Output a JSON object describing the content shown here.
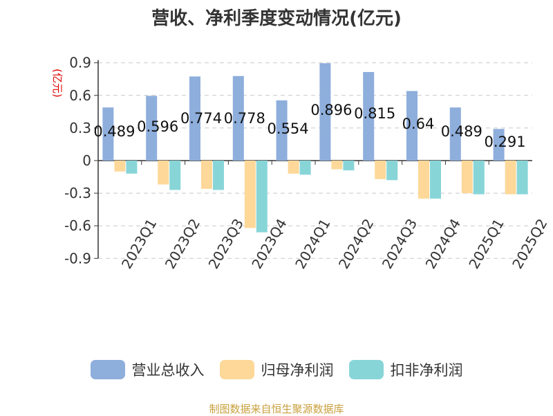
{
  "chart_data": {
    "type": "bar",
    "title": "营收、净利季度变动情况(亿元)",
    "ylabel": "(亿元)",
    "xlabel": "",
    "categories": [
      "2023Q1",
      "2023Q2",
      "2023Q3",
      "2023Q4",
      "2024Q1",
      "2024Q2",
      "2024Q3",
      "2024Q4",
      "2025Q1",
      "2025Q2"
    ],
    "yticks": [
      "0.9",
      "0.6",
      "0.3",
      "0",
      "-0.3",
      "-0.6",
      "-0.9"
    ],
    "ylim": [
      -0.9,
      0.9
    ],
    "grid": true,
    "legend_position": "bottom",
    "series": [
      {
        "name": "营业总收入",
        "color": "#8eaedc",
        "values": [
          0.489,
          0.596,
          0.774,
          0.778,
          0.554,
          0.896,
          0.815,
          0.64,
          0.489,
          0.291
        ],
        "labels": [
          "0.489",
          "0.596",
          "0.774",
          "0.778",
          "0.554",
          "0.896",
          "0.815",
          "0.64",
          "0.489",
          "0.291"
        ]
      },
      {
        "name": "归母净利润",
        "color": "#fdd899",
        "values": [
          -0.1,
          -0.22,
          -0.26,
          -0.62,
          -0.12,
          -0.08,
          -0.17,
          -0.35,
          -0.3,
          -0.31
        ]
      },
      {
        "name": "扣非净利润",
        "color": "#88d5d8",
        "values": [
          -0.12,
          -0.27,
          -0.27,
          -0.66,
          -0.13,
          -0.09,
          -0.18,
          -0.35,
          -0.31,
          -0.31
        ]
      }
    ]
  },
  "footer": {
    "source": "制图数据来自恒生聚源数据库"
  }
}
